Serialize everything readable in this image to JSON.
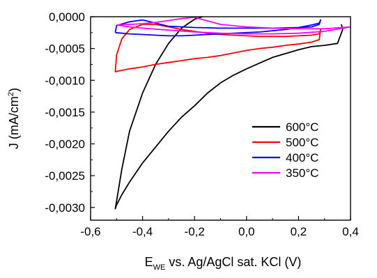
{
  "chart_data": {
    "type": "line",
    "title": "",
    "xlabel": {
      "main": "E",
      "sub": "WE",
      "rest": " vs. Ag/AgCl sat. KCl (V)"
    },
    "ylabel": {
      "main": "J (mA/cm",
      "sup": "2",
      "close": ")"
    },
    "xlim": [
      -0.6,
      0.4
    ],
    "ylim": [
      -0.0032,
      0.0
    ],
    "xticks": [
      -0.6,
      -0.4,
      -0.2,
      0.0,
      0.2,
      0.4
    ],
    "xtick_labels": [
      "-0,6",
      "-0,4",
      "-0,2",
      "0,0",
      "0,2",
      "0,4"
    ],
    "yticks": [
      0.0,
      -0.0005,
      -0.001,
      -0.0015,
      -0.002,
      -0.0025,
      -0.003
    ],
    "ytick_labels": [
      "0,0000",
      "-0,0005",
      "-0,0010",
      "-0,0015",
      "-0,0020",
      "-0,0025",
      "-0,0030"
    ],
    "grid": false,
    "legend_position": "right",
    "series": [
      {
        "name": "600°C",
        "color": "#000000",
        "x": [
          0.365,
          0.37,
          0.35,
          0.3,
          0.25,
          0.2,
          0.15,
          0.1,
          0.05,
          0.0,
          -0.05,
          -0.1,
          -0.15,
          -0.2,
          -0.25,
          -0.3,
          -0.35,
          -0.4,
          -0.45,
          -0.48,
          -0.5,
          -0.505,
          -0.5,
          -0.48,
          -0.45,
          -0.4,
          -0.35,
          -0.3,
          -0.25,
          -0.2,
          -0.17
        ],
        "y": [
          -0.00012,
          -0.0002,
          -0.00042,
          -0.00045,
          -0.00047,
          -0.00052,
          -0.00058,
          -0.00064,
          -0.00073,
          -0.00082,
          -0.00092,
          -0.00104,
          -0.0012,
          -0.0014,
          -0.00158,
          -0.0018,
          -0.00205,
          -0.0023,
          -0.0026,
          -0.0028,
          -0.00296,
          -0.00302,
          -0.0029,
          -0.0024,
          -0.0018,
          -0.0012,
          -0.00075,
          -0.00042,
          -0.00018,
          -4e-05,
          0.0
        ]
      },
      {
        "name": "500°C",
        "color": "#ff0000",
        "x": [
          -0.505,
          -0.5,
          -0.45,
          -0.4,
          -0.35,
          -0.3,
          -0.25,
          -0.2,
          -0.15,
          -0.1,
          -0.05,
          0.0,
          0.05,
          0.1,
          0.15,
          0.2,
          0.25,
          0.28,
          0.285,
          0.28,
          0.25,
          0.2,
          0.15,
          0.1,
          0.05,
          0.0,
          -0.05,
          -0.1,
          -0.15,
          -0.2,
          -0.25,
          -0.3,
          -0.35,
          -0.4,
          -0.45,
          -0.48,
          -0.5,
          -0.505
        ],
        "y": [
          -0.00087,
          -0.00086,
          -0.00082,
          -0.00079,
          -0.00075,
          -0.00072,
          -0.00069,
          -0.00066,
          -0.00064,
          -0.00061,
          -0.00057,
          -0.00053,
          -0.0005,
          -0.00048,
          -0.00045,
          -0.00043,
          -0.0004,
          -0.00036,
          -0.0002,
          -0.00027,
          -0.00029,
          -0.0003,
          -0.00031,
          -0.00031,
          -0.00031,
          -0.0003,
          -0.00029,
          -0.00028,
          -0.00026,
          -0.00023,
          -0.0002,
          -0.00016,
          -0.00012,
          -0.00012,
          -0.0002,
          -0.00035,
          -0.0006,
          -0.00087
        ]
      },
      {
        "name": "400°C",
        "color": "#0000ff",
        "x": [
          -0.505,
          -0.45,
          -0.4,
          -0.35,
          -0.3,
          -0.25,
          -0.2,
          -0.15,
          -0.1,
          -0.05,
          0.0,
          0.05,
          0.1,
          0.15,
          0.2,
          0.25,
          0.28,
          0.285,
          0.28,
          0.25,
          0.2,
          0.1,
          0.0,
          -0.1,
          -0.2,
          -0.3,
          -0.35,
          -0.4,
          -0.45,
          -0.5,
          -0.505
        ],
        "y": [
          -0.00025,
          -0.00027,
          -0.00028,
          -0.00029,
          -0.0003,
          -0.0003,
          -0.00029,
          -0.00028,
          -0.00027,
          -0.00026,
          -0.00025,
          -0.00024,
          -0.00022,
          -0.0002,
          -0.00017,
          -0.00013,
          -0.0001,
          -5e-05,
          -0.00012,
          -0.00016,
          -0.00017,
          -0.00018,
          -0.00018,
          -0.00018,
          -0.00017,
          -0.00015,
          -0.0001,
          -5e-05,
          -8e-05,
          -0.00014,
          -0.00025
        ]
      },
      {
        "name": "350°C",
        "color": "#ff00ff",
        "x": [
          -0.5,
          -0.45,
          -0.4,
          -0.35,
          -0.3,
          -0.25,
          -0.2,
          -0.1,
          0.0,
          0.1,
          0.2,
          0.3,
          0.4,
          0.3,
          0.2,
          0.1,
          0.0,
          -0.1,
          -0.2,
          -0.3,
          -0.4,
          -0.45,
          -0.5
        ],
        "y": [
          -0.00013,
          -0.00012,
          -0.00011,
          -9e-05,
          -6e-05,
          -3e-05,
          -1e-05,
          -0.00012,
          -0.00016,
          -0.00018,
          -0.00019,
          -0.00019,
          -0.00016,
          -0.00023,
          -0.00026,
          -0.00027,
          -0.00027,
          -0.00026,
          -0.00024,
          -0.00021,
          -0.00018,
          -0.00016,
          -0.00013
        ]
      }
    ]
  }
}
